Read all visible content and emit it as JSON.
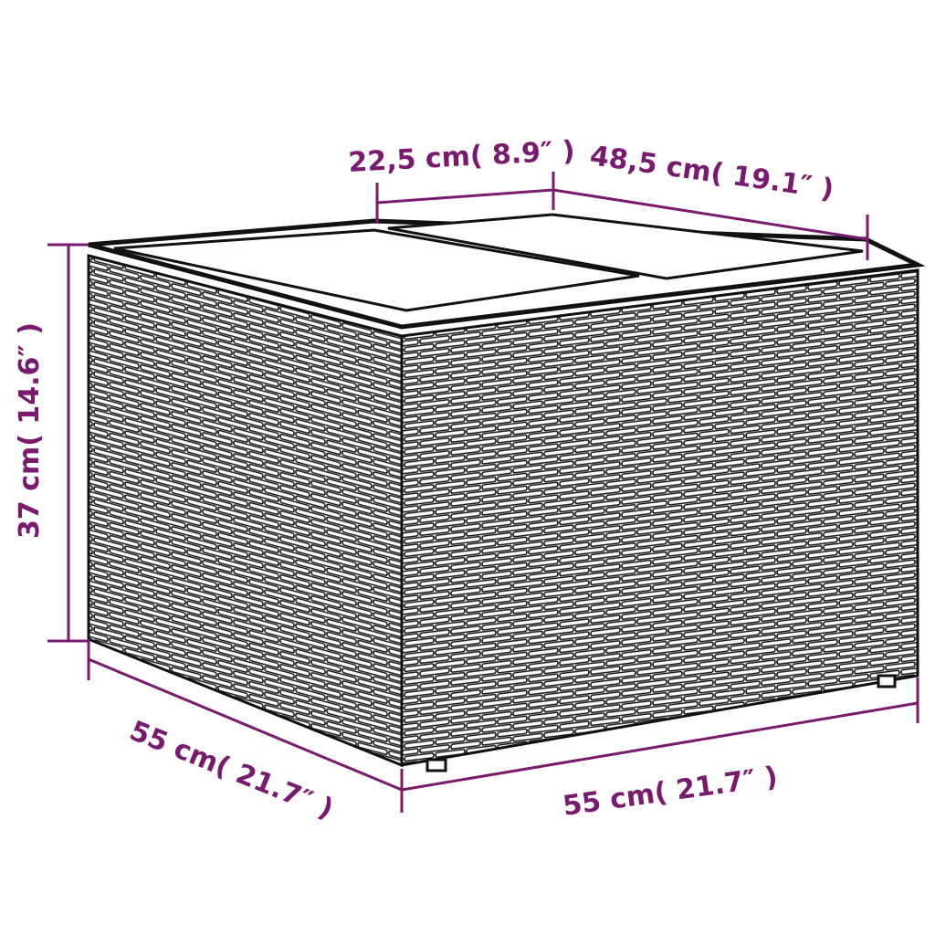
{
  "accent_color": "#7a1a6e",
  "product": "wicker storage box with split lid",
  "dimensions": {
    "lid_section_width": "22,5 cm( 8.9″ )",
    "lid_depth": "48,5 cm( 19.1″ )",
    "height": "37 cm( 14.6″ )",
    "side_depth": "55 cm( 21.7″ )",
    "front_width": "55 cm( 21.7″ )"
  }
}
